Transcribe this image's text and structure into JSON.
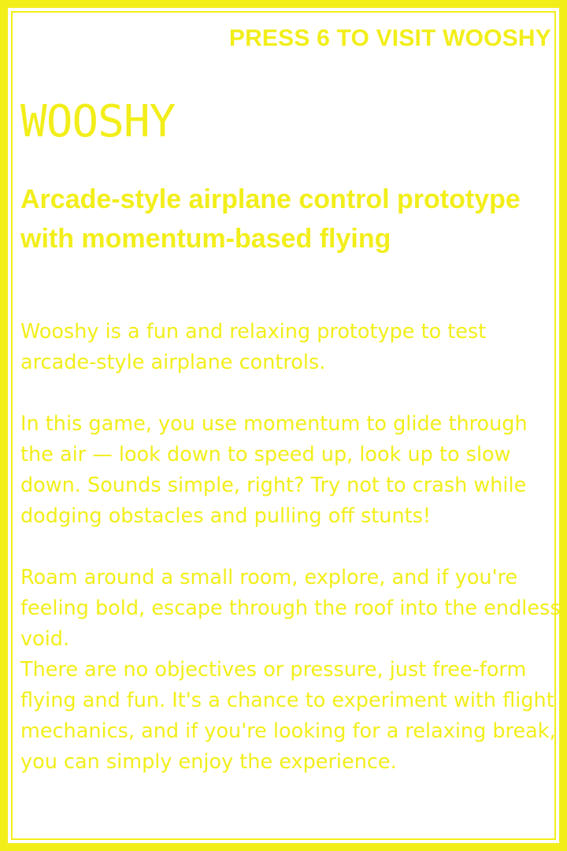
{
  "header": {
    "cta": "PRESS 6 TO VISIT WOOSHY"
  },
  "game": {
    "title": "WOOSHY",
    "tagline": "Arcade-style airplane control prototype with momentum-based flying",
    "paragraphs": [
      "Wooshy is a fun and relaxing prototype to test arcade-style airplane controls.",
      "In this game, you use momentum to glide through the air — look down to speed up, look up to slow down. Sounds simple, right? Try not to crash while dodging obstacles and pulling off stunts!",
      "Roam around a small room, explore, and if you're feeling bold, escape through the roof into the endless void.",
      "There are no objectives or pressure, just free-form flying and fun. It's a chance to experiment with flight mechanics, and if you're looking for a relaxing break, you can simply enjoy the experience."
    ]
  },
  "colors": {
    "accent": "#f2ee1a",
    "background": "#ffffff"
  }
}
